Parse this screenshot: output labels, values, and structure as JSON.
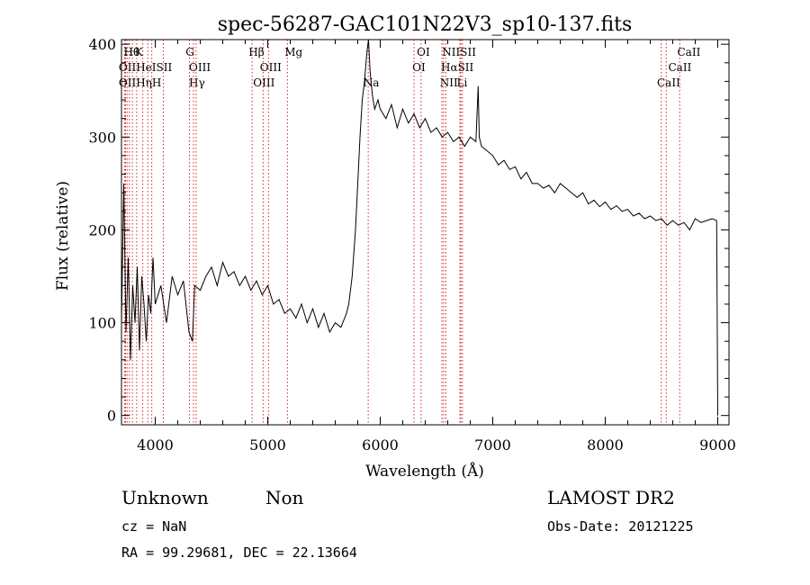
{
  "chart_data": {
    "type": "line",
    "title": "spec-56287-GAC101N22V3_sp10-137.fits",
    "xlabel": "Wavelength (Å)",
    "ylabel": "Flux (relative)",
    "xlim": [
      3700,
      9100
    ],
    "ylim": [
      -10,
      405
    ],
    "xticks": [
      4000,
      5000,
      6000,
      7000,
      8000,
      9000
    ],
    "yticks": [
      0,
      100,
      200,
      300,
      400
    ],
    "grid": false,
    "series": [
      {
        "x": [
          3700,
          3720,
          3740,
          3760,
          3780,
          3800,
          3820,
          3840,
          3860,
          3880,
          3900,
          3920,
          3940,
          3960,
          3980,
          4000,
          4050,
          4100,
          4150,
          4200,
          4250,
          4300,
          4330,
          4350,
          4400,
          4450,
          4500,
          4550,
          4600,
          4650,
          4700,
          4750,
          4800,
          4850,
          4900,
          4950,
          5000,
          5050,
          5100,
          5150,
          5200,
          5250,
          5300,
          5350,
          5400,
          5450,
          5500,
          5550,
          5600,
          5650,
          5700,
          5720,
          5750,
          5780,
          5800,
          5820,
          5840,
          5860,
          5880,
          5895,
          5910,
          5930,
          5950,
          5980,
          6000,
          6050,
          6100,
          6150,
          6200,
          6250,
          6300,
          6350,
          6400,
          6450,
          6500,
          6550,
          6600,
          6650,
          6700,
          6750,
          6800,
          6850,
          6870,
          6880,
          6900,
          6950,
          7000,
          7050,
          7100,
          7150,
          7200,
          7250,
          7300,
          7350,
          7400,
          7450,
          7500,
          7550,
          7600,
          7650,
          7700,
          7750,
          7800,
          7850,
          7900,
          7950,
          8000,
          8050,
          8100,
          8150,
          8200,
          8250,
          8300,
          8350,
          8400,
          8450,
          8500,
          8550,
          8600,
          8650,
          8700,
          8750,
          8800,
          8850,
          8900,
          8950,
          8990,
          9000
        ],
        "y": [
          100,
          250,
          90,
          170,
          60,
          140,
          100,
          160,
          70,
          150,
          120,
          80,
          130,
          110,
          170,
          120,
          140,
          100,
          150,
          130,
          145,
          90,
          80,
          140,
          135,
          150,
          160,
          140,
          165,
          150,
          155,
          140,
          150,
          135,
          145,
          130,
          140,
          120,
          125,
          110,
          115,
          105,
          120,
          100,
          115,
          95,
          110,
          90,
          100,
          95,
          110,
          120,
          150,
          200,
          250,
          300,
          340,
          360,
          390,
          405,
          370,
          345,
          330,
          340,
          330,
          320,
          335,
          310,
          330,
          315,
          325,
          310,
          320,
          305,
          310,
          300,
          305,
          295,
          300,
          290,
          300,
          295,
          355,
          300,
          290,
          285,
          280,
          270,
          275,
          265,
          268,
          255,
          262,
          250,
          250,
          245,
          248,
          240,
          250,
          245,
          240,
          235,
          240,
          228,
          232,
          225,
          230,
          222,
          226,
          220,
          222,
          215,
          218,
          212,
          215,
          210,
          212,
          205,
          210,
          205,
          208,
          200,
          212,
          208,
          210,
          212,
          210,
          0
        ]
      }
    ],
    "lines": [
      {
        "x": 3728,
        "label": "OII"
      },
      {
        "x": 3736,
        "label": "OII"
      },
      {
        "x": 3750,
        "label": "Hθ"
      },
      {
        "x": 3770,
        "label": "Hη"
      },
      {
        "x": 3797,
        "label": "Hη"
      },
      {
        "x": 3835,
        "label": "K"
      },
      {
        "x": 3889,
        "label": "HeI"
      },
      {
        "x": 3934,
        "label": "K"
      },
      {
        "x": 3969,
        "label": "H"
      },
      {
        "x": 4072,
        "label": "SII"
      },
      {
        "x": 4304,
        "label": "G"
      },
      {
        "x": 4340,
        "label": "Hγ"
      },
      {
        "x": 4363,
        "label": "OIII"
      },
      {
        "x": 4861,
        "label": "Hβ"
      },
      {
        "x": 4959,
        "label": "OIII"
      },
      {
        "x": 5007,
        "label": "OIII"
      },
      {
        "x": 5175,
        "label": "Mg"
      },
      {
        "x": 5893,
        "label": "Na"
      },
      {
        "x": 6300,
        "label": "OI"
      },
      {
        "x": 6363,
        "label": "OI"
      },
      {
        "x": 6548,
        "label": "NII"
      },
      {
        "x": 6563,
        "label": "Hα"
      },
      {
        "x": 6583,
        "label": "NII"
      },
      {
        "x": 6708,
        "label": "Li"
      },
      {
        "x": 6716,
        "label": "SII"
      },
      {
        "x": 6731,
        "label": "SII"
      },
      {
        "x": 8498,
        "label": "CaII"
      },
      {
        "x": 8542,
        "label": "CaII"
      },
      {
        "x": 8662,
        "label": "CaII"
      }
    ],
    "annotations": {
      "row1": [
        {
          "x": 3720,
          "text": "Hθ"
        },
        {
          "x": 3818,
          "text": "K"
        },
        {
          "x": 4270,
          "text": "G"
        },
        {
          "x": 4830,
          "text": "Hβ"
        },
        {
          "x": 5150,
          "text": "Mg"
        },
        {
          "x": 6325,
          "text": "OI"
        },
        {
          "x": 6550,
          "text": "NIISII"
        },
        {
          "x": 8640,
          "text": "CaII"
        }
      ],
      "row2": [
        {
          "x": 3675,
          "text": "OIIHeISII"
        },
        {
          "x": 4300,
          "text": "OIII"
        },
        {
          "x": 4930,
          "text": "OIII"
        },
        {
          "x": 6285,
          "text": "OI"
        },
        {
          "x": 6540,
          "text": "HαSII"
        },
        {
          "x": 8560,
          "text": "CaII"
        }
      ],
      "row3": [
        {
          "x": 3675,
          "text": "OIIHηH"
        },
        {
          "x": 4300,
          "text": "Hγ"
        },
        {
          "x": 4870,
          "text": "OIII"
        },
        {
          "x": 5850,
          "text": "Na"
        },
        {
          "x": 6530,
          "text": "NII"
        },
        {
          "x": 6680,
          "text": "Li"
        },
        {
          "x": 8460,
          "text": "CaII"
        }
      ]
    }
  },
  "info": {
    "object_class": "Unknown",
    "subclass": "Non",
    "survey": "LAMOST DR2",
    "cz": "cz = NaN",
    "obs_date": "Obs-Date: 20121225",
    "coords": "RA =  99.29681, DEC =  22.13664"
  },
  "colors": {
    "line": "#000000",
    "marker": "#d62728",
    "axes": "#000000"
  }
}
